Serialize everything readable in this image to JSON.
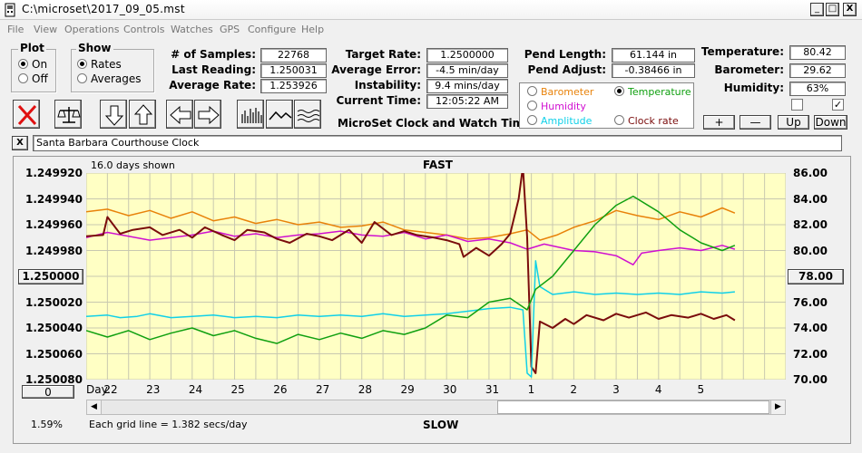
{
  "window": {
    "title": "C:\\microset\\2017_09_05.mst",
    "minimize": "_",
    "maximize": "□",
    "close": "X"
  },
  "menu": [
    "File",
    "View",
    "Operations",
    "Controls",
    "Watches",
    "GPS",
    "Configure",
    "Help"
  ],
  "plot": {
    "legend": "Plot",
    "on": "On",
    "off": "Off",
    "selected": "On"
  },
  "show": {
    "legend": "Show",
    "rates": "Rates",
    "averages": "Averages",
    "selected": "Rates"
  },
  "samples": {
    "label": "# of Samples:",
    "value": "22768"
  },
  "last_reading": {
    "label": "Last Reading:",
    "value": "1.250031"
  },
  "average_rate": {
    "label": "Average Rate:",
    "value": "1.253926"
  },
  "target_rate": {
    "label": "Target Rate:",
    "value": "1.2500000"
  },
  "average_error": {
    "label": "Average Error:",
    "value": "-4.5 min/day"
  },
  "instability": {
    "label": "Instability:",
    "value": "9.4 mins/day"
  },
  "current_time": {
    "label": "Current Time:",
    "value": "12:05:22 AM"
  },
  "app_caption": "MicroSet Clock and Watch Timer",
  "pend_length": {
    "label": "Pend Length:",
    "value": "61.144 in"
  },
  "pend_adjust": {
    "label": "Pend Adjust:",
    "value": "-0.38466 in"
  },
  "temperature": {
    "label": "Temperature:",
    "value": "80.42"
  },
  "barometer": {
    "label": "Barometer:",
    "value": "29.62"
  },
  "humidity": {
    "label": "Humidity:",
    "value": "63%"
  },
  "aux_options": [
    {
      "label": "Barometer",
      "color": "#e8820a",
      "selected": false
    },
    {
      "label": "Temperature",
      "color": "#10a010",
      "selected": true
    },
    {
      "label": "Humidity",
      "color": "#d010d0",
      "selected": false
    },
    {
      "label": "Clock rate",
      "color": "#7a0c0c",
      "selected": false
    },
    {
      "label": "Amplitude",
      "color": "#10d0e8",
      "selected": false
    }
  ],
  "checkboxes": [
    {
      "checked": false
    },
    {
      "checked": true
    }
  ],
  "scale_buttons": {
    "plus": "+",
    "minus": "—",
    "up": "Up",
    "down": "Down"
  },
  "clock_name": {
    "close": "X",
    "value": "Santa Barbara Courthouse Clock"
  },
  "chart_header": {
    "days_shown": "16.0 days shown",
    "fast": "FAST",
    "slow": "SLOW",
    "grid_note": "Each grid line = 1.382 secs/day",
    "zoom": "1.59%",
    "day_label": "Day:",
    "left_button": "0"
  },
  "chart_data": {
    "type": "line",
    "left_axis": {
      "ticks": [
        "1.249920",
        "1.249940",
        "1.249960",
        "1.249980",
        "1.250000",
        "1.250020",
        "1.250040",
        "1.250060",
        "1.250080"
      ],
      "ylim": [
        1.24992,
        1.25008
      ],
      "inverted": true,
      "center_button": "1.250000"
    },
    "right_axis": {
      "ticks": [
        "86.00",
        "84.00",
        "82.00",
        "80.00",
        "78.00",
        "76.00",
        "74.00",
        "72.00",
        "70.00"
      ],
      "ylim": [
        70,
        86
      ],
      "center_button": "78.00"
    },
    "x_days": [
      "22",
      "23",
      "24",
      "25",
      "26",
      "27",
      "28",
      "29",
      "30",
      "31",
      "1",
      "2",
      "3",
      "4",
      "5"
    ],
    "xlim": [
      21.5,
      38
    ],
    "series": [
      {
        "key": "barometer",
        "color": "#e8820a",
        "points": [
          [
            21.5,
            83.0
          ],
          [
            22.0,
            83.2
          ],
          [
            22.5,
            82.7
          ],
          [
            23.0,
            83.1
          ],
          [
            23.5,
            82.5
          ],
          [
            24.0,
            83.0
          ],
          [
            24.5,
            82.3
          ],
          [
            25.0,
            82.6
          ],
          [
            25.5,
            82.1
          ],
          [
            26.0,
            82.4
          ],
          [
            26.5,
            82.0
          ],
          [
            27.0,
            82.2
          ],
          [
            27.5,
            81.8
          ],
          [
            28.0,
            81.9
          ],
          [
            28.5,
            82.2
          ],
          [
            29.0,
            81.6
          ],
          [
            29.5,
            81.4
          ],
          [
            30.0,
            81.2
          ],
          [
            30.5,
            80.9
          ],
          [
            31.0,
            81.0
          ],
          [
            31.5,
            81.3
          ],
          [
            31.9,
            81.6
          ],
          [
            32.2,
            80.8
          ],
          [
            32.6,
            81.2
          ],
          [
            33.0,
            81.8
          ],
          [
            33.5,
            82.3
          ],
          [
            34.0,
            83.1
          ],
          [
            34.5,
            82.7
          ],
          [
            35.0,
            82.4
          ],
          [
            35.5,
            83.0
          ],
          [
            36.0,
            82.6
          ],
          [
            36.5,
            83.3
          ],
          [
            36.8,
            82.9
          ]
        ]
      },
      {
        "key": "humidity",
        "color": "#d010d0",
        "points": [
          [
            21.5,
            81.0
          ],
          [
            22.0,
            81.4
          ],
          [
            22.5,
            81.1
          ],
          [
            23.0,
            80.8
          ],
          [
            23.5,
            81.0
          ],
          [
            24.0,
            81.2
          ],
          [
            24.5,
            81.5
          ],
          [
            25.0,
            81.1
          ],
          [
            25.5,
            81.3
          ],
          [
            26.0,
            81.0
          ],
          [
            26.5,
            81.2
          ],
          [
            27.0,
            81.3
          ],
          [
            27.5,
            81.5
          ],
          [
            28.0,
            81.2
          ],
          [
            28.5,
            81.1
          ],
          [
            29.0,
            81.4
          ],
          [
            29.5,
            80.9
          ],
          [
            30.0,
            81.2
          ],
          [
            30.5,
            80.7
          ],
          [
            31.0,
            80.9
          ],
          [
            31.5,
            80.6
          ],
          [
            31.9,
            80.1
          ],
          [
            32.3,
            80.5
          ],
          [
            33.0,
            80.0
          ],
          [
            33.5,
            79.9
          ],
          [
            34.0,
            79.6
          ],
          [
            34.4,
            78.9
          ],
          [
            34.6,
            79.8
          ],
          [
            35.0,
            80.0
          ],
          [
            35.5,
            80.2
          ],
          [
            36.0,
            80.0
          ],
          [
            36.5,
            80.4
          ],
          [
            36.8,
            80.1
          ]
        ]
      },
      {
        "key": "clock_rate",
        "color": "#7a0c0c",
        "points": [
          [
            21.5,
            81.1
          ],
          [
            21.9,
            81.2
          ],
          [
            22.0,
            82.6
          ],
          [
            22.3,
            81.3
          ],
          [
            22.6,
            81.6
          ],
          [
            23.0,
            81.8
          ],
          [
            23.3,
            81.2
          ],
          [
            23.7,
            81.6
          ],
          [
            24.0,
            81.0
          ],
          [
            24.3,
            81.8
          ],
          [
            24.7,
            81.2
          ],
          [
            25.0,
            80.8
          ],
          [
            25.3,
            81.6
          ],
          [
            25.7,
            81.4
          ],
          [
            26.0,
            80.9
          ],
          [
            26.3,
            80.6
          ],
          [
            26.7,
            81.3
          ],
          [
            27.0,
            81.1
          ],
          [
            27.3,
            80.8
          ],
          [
            27.7,
            81.6
          ],
          [
            28.0,
            80.6
          ],
          [
            28.3,
            82.2
          ],
          [
            28.7,
            81.2
          ],
          [
            29.0,
            81.5
          ],
          [
            29.3,
            81.2
          ],
          [
            29.7,
            81.0
          ],
          [
            30.0,
            80.8
          ],
          [
            30.3,
            80.5
          ],
          [
            30.4,
            79.5
          ],
          [
            30.7,
            80.2
          ],
          [
            31.0,
            79.6
          ],
          [
            31.3,
            80.5
          ],
          [
            31.5,
            81.3
          ],
          [
            31.7,
            84.0
          ],
          [
            31.8,
            86.5
          ],
          [
            31.9,
            81.0
          ],
          [
            32.0,
            71.0
          ],
          [
            32.1,
            70.5
          ],
          [
            32.2,
            74.5
          ],
          [
            32.5,
            74.0
          ],
          [
            32.8,
            74.7
          ],
          [
            33.0,
            74.3
          ],
          [
            33.3,
            75.0
          ],
          [
            33.7,
            74.6
          ],
          [
            34.0,
            75.1
          ],
          [
            34.3,
            74.8
          ],
          [
            34.7,
            75.2
          ],
          [
            35.0,
            74.7
          ],
          [
            35.3,
            75.0
          ],
          [
            35.7,
            74.8
          ],
          [
            36.0,
            75.1
          ],
          [
            36.3,
            74.7
          ],
          [
            36.6,
            75.0
          ],
          [
            36.8,
            74.6
          ]
        ]
      },
      {
        "key": "amplitude",
        "color": "#10d0e8",
        "points": [
          [
            21.5,
            74.9
          ],
          [
            22.0,
            75.0
          ],
          [
            22.3,
            74.8
          ],
          [
            22.7,
            74.9
          ],
          [
            23.0,
            75.1
          ],
          [
            23.5,
            74.8
          ],
          [
            24.0,
            74.9
          ],
          [
            24.5,
            75.0
          ],
          [
            25.0,
            74.8
          ],
          [
            25.5,
            74.9
          ],
          [
            26.0,
            74.8
          ],
          [
            26.5,
            75.0
          ],
          [
            27.0,
            74.9
          ],
          [
            27.5,
            75.0
          ],
          [
            28.0,
            74.9
          ],
          [
            28.5,
            75.1
          ],
          [
            29.0,
            74.9
          ],
          [
            29.5,
            75.0
          ],
          [
            30.0,
            75.1
          ],
          [
            30.5,
            75.3
          ],
          [
            31.0,
            75.5
          ],
          [
            31.5,
            75.6
          ],
          [
            31.8,
            75.4
          ],
          [
            31.9,
            70.5
          ],
          [
            32.0,
            70.2
          ],
          [
            32.1,
            79.2
          ],
          [
            32.2,
            77.2
          ],
          [
            32.5,
            76.6
          ],
          [
            33.0,
            76.8
          ],
          [
            33.5,
            76.6
          ],
          [
            34.0,
            76.7
          ],
          [
            34.5,
            76.6
          ],
          [
            35.0,
            76.7
          ],
          [
            35.5,
            76.6
          ],
          [
            36.0,
            76.8
          ],
          [
            36.5,
            76.7
          ],
          [
            36.8,
            76.8
          ]
        ]
      },
      {
        "key": "temperature",
        "color": "#10a010",
        "points": [
          [
            21.5,
            73.8
          ],
          [
            22.0,
            73.3
          ],
          [
            22.5,
            73.8
          ],
          [
            23.0,
            73.1
          ],
          [
            23.5,
            73.6
          ],
          [
            24.0,
            74.0
          ],
          [
            24.5,
            73.4
          ],
          [
            25.0,
            73.8
          ],
          [
            25.5,
            73.2
          ],
          [
            26.0,
            72.8
          ],
          [
            26.5,
            73.5
          ],
          [
            27.0,
            73.1
          ],
          [
            27.5,
            73.6
          ],
          [
            28.0,
            73.2
          ],
          [
            28.5,
            73.8
          ],
          [
            29.0,
            73.5
          ],
          [
            29.5,
            74.0
          ],
          [
            30.0,
            75.0
          ],
          [
            30.5,
            74.8
          ],
          [
            31.0,
            76.0
          ],
          [
            31.5,
            76.3
          ],
          [
            31.9,
            75.4
          ],
          [
            32.1,
            77.0
          ],
          [
            32.5,
            78.0
          ],
          [
            33.0,
            80.0
          ],
          [
            33.5,
            82.0
          ],
          [
            34.0,
            83.5
          ],
          [
            34.4,
            84.2
          ],
          [
            35.0,
            83.0
          ],
          [
            35.5,
            81.6
          ],
          [
            36.0,
            80.6
          ],
          [
            36.5,
            80.0
          ],
          [
            36.8,
            80.4
          ]
        ]
      }
    ]
  }
}
